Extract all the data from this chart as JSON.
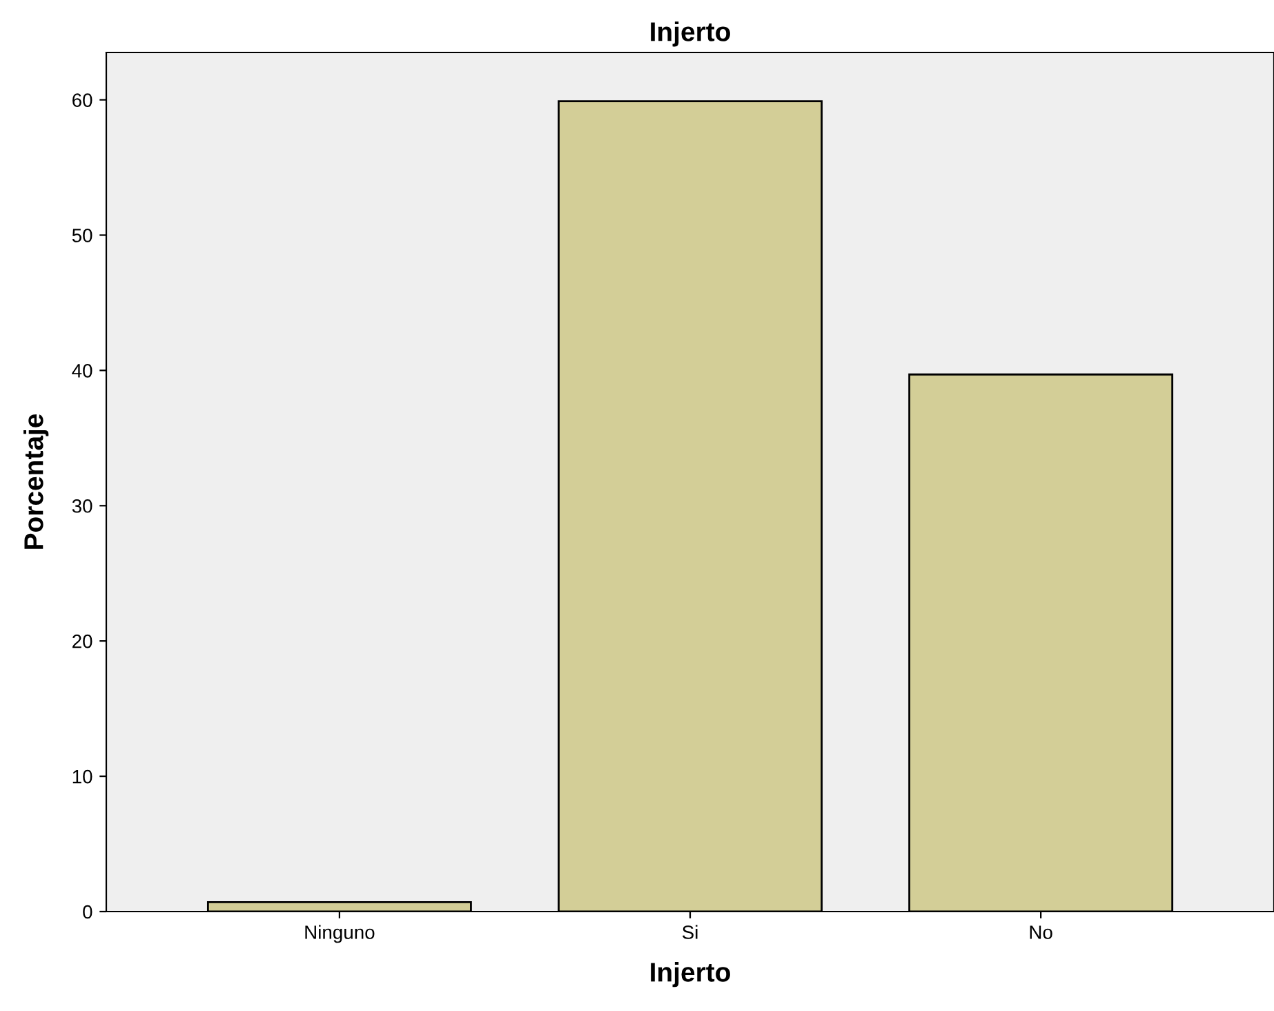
{
  "chart_data": {
    "type": "bar",
    "title": "Injerto",
    "xlabel": "Injerto",
    "ylabel": "Porcentaje",
    "categories": [
      "Ninguno",
      "Si",
      "No"
    ],
    "values": [
      0.7,
      59.9,
      39.7
    ],
    "color": "#d3ce97",
    "ylim": [
      0,
      63.5
    ],
    "yticks": [
      0,
      10,
      20,
      30,
      40,
      50,
      60
    ],
    "grid": false
  }
}
